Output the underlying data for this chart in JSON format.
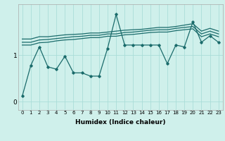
{
  "xlabel": "Humidex (Indice chaleur)",
  "bg_color": "#cff0eb",
  "line_color": "#1a6b6b",
  "grid_color": "#aaddd8",
  "x_values": [
    0,
    1,
    2,
    3,
    4,
    5,
    6,
    7,
    8,
    9,
    10,
    11,
    12,
    13,
    14,
    15,
    16,
    17,
    18,
    19,
    20,
    21,
    22,
    23
  ],
  "series_main": [
    0.12,
    0.78,
    1.18,
    0.75,
    0.7,
    0.98,
    0.62,
    0.62,
    0.55,
    0.55,
    1.15,
    1.88,
    1.22,
    1.22,
    1.22,
    1.22,
    1.22,
    0.82,
    1.22,
    1.18,
    1.72,
    1.28,
    1.42,
    1.28
  ],
  "series_upper": [
    1.35,
    1.35,
    1.4,
    1.4,
    1.42,
    1.44,
    1.45,
    1.46,
    1.48,
    1.48,
    1.5,
    1.52,
    1.54,
    1.55,
    1.56,
    1.58,
    1.6,
    1.6,
    1.62,
    1.65,
    1.68,
    1.52,
    1.58,
    1.52
  ],
  "series_mid": [
    1.28,
    1.28,
    1.33,
    1.34,
    1.36,
    1.38,
    1.4,
    1.41,
    1.43,
    1.43,
    1.46,
    1.46,
    1.49,
    1.5,
    1.52,
    1.54,
    1.55,
    1.55,
    1.58,
    1.6,
    1.62,
    1.46,
    1.52,
    1.46
  ],
  "series_lower": [
    1.22,
    1.22,
    1.27,
    1.28,
    1.31,
    1.33,
    1.34,
    1.36,
    1.38,
    1.38,
    1.41,
    1.41,
    1.44,
    1.45,
    1.47,
    1.49,
    1.5,
    1.5,
    1.53,
    1.55,
    1.57,
    1.4,
    1.46,
    1.4
  ],
  "ylim": [
    -0.18,
    2.1
  ],
  "yticks": [
    0,
    1
  ],
  "xlim": [
    -0.5,
    23.5
  ],
  "figsize": [
    3.2,
    2.0
  ],
  "dpi": 100
}
